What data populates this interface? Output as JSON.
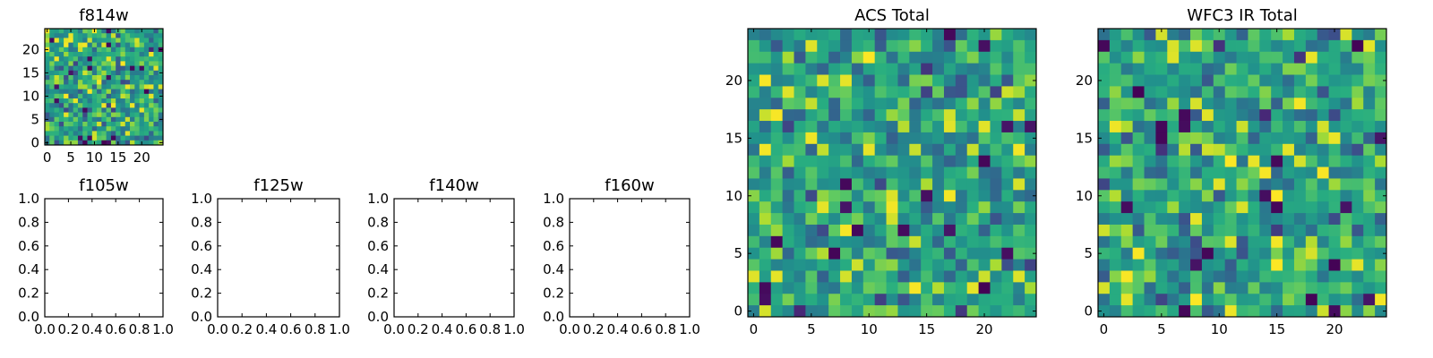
{
  "chart_data": [
    {
      "type": "heatmap",
      "title": "f814w",
      "xticks": [
        "0",
        "5",
        "10",
        "15",
        "20"
      ],
      "yticks": [
        "0",
        "5",
        "10",
        "15",
        "20"
      ],
      "grid_size": 25,
      "colormap": "viridis",
      "random_seed": 814,
      "vmin": 0,
      "vmax": 1
    },
    {
      "type": "empty",
      "title": "f105w",
      "xticks": [
        "0.0",
        "0.2",
        "0.4",
        "0.6",
        "0.8",
        "1.0"
      ],
      "yticks": [
        "0.0",
        "0.2",
        "0.4",
        "0.6",
        "0.8",
        "1.0"
      ],
      "xlim": [
        0,
        1
      ],
      "ylim": [
        0,
        1
      ]
    },
    {
      "type": "empty",
      "title": "f125w",
      "xticks": [
        "0.0",
        "0.2",
        "0.4",
        "0.6",
        "0.8",
        "1.0"
      ],
      "yticks": [
        "0.0",
        "0.2",
        "0.4",
        "0.6",
        "0.8",
        "1.0"
      ],
      "xlim": [
        0,
        1
      ],
      "ylim": [
        0,
        1
      ]
    },
    {
      "type": "empty",
      "title": "f140w",
      "xticks": [
        "0.0",
        "0.2",
        "0.4",
        "0.6",
        "0.8",
        "1.0"
      ],
      "yticks": [
        "0.0",
        "0.2",
        "0.4",
        "0.6",
        "0.8",
        "1.0"
      ],
      "xlim": [
        0,
        1
      ],
      "ylim": [
        0,
        1
      ]
    },
    {
      "type": "empty",
      "title": "f160w",
      "xticks": [
        "0.0",
        "0.2",
        "0.4",
        "0.6",
        "0.8",
        "1.0"
      ],
      "yticks": [
        "0.0",
        "0.2",
        "0.4",
        "0.6",
        "0.8",
        "1.0"
      ],
      "xlim": [
        0,
        1
      ],
      "ylim": [
        0,
        1
      ]
    },
    {
      "type": "heatmap",
      "title": "ACS Total",
      "xticks": [
        "0",
        "5",
        "10",
        "15",
        "20"
      ],
      "yticks": [
        "0",
        "5",
        "10",
        "15",
        "20"
      ],
      "grid_size": 25,
      "colormap": "viridis",
      "random_seed": 2001,
      "vmin": 0,
      "vmax": 1
    },
    {
      "type": "heatmap",
      "title": "WFC3 IR Total",
      "xticks": [
        "0",
        "5",
        "10",
        "15",
        "20"
      ],
      "yticks": [
        "0",
        "5",
        "10",
        "15",
        "20"
      ],
      "grid_size": 25,
      "colormap": "viridis",
      "random_seed": 3013,
      "vmin": 0,
      "vmax": 1
    }
  ],
  "colors": {
    "viridis_dark": "#440154",
    "viridis_blue": "#3b528b",
    "viridis_teal": "#21918c",
    "viridis_green": "#5ec962",
    "viridis_yellow": "#fde725",
    "axis_frame": "#000000"
  }
}
